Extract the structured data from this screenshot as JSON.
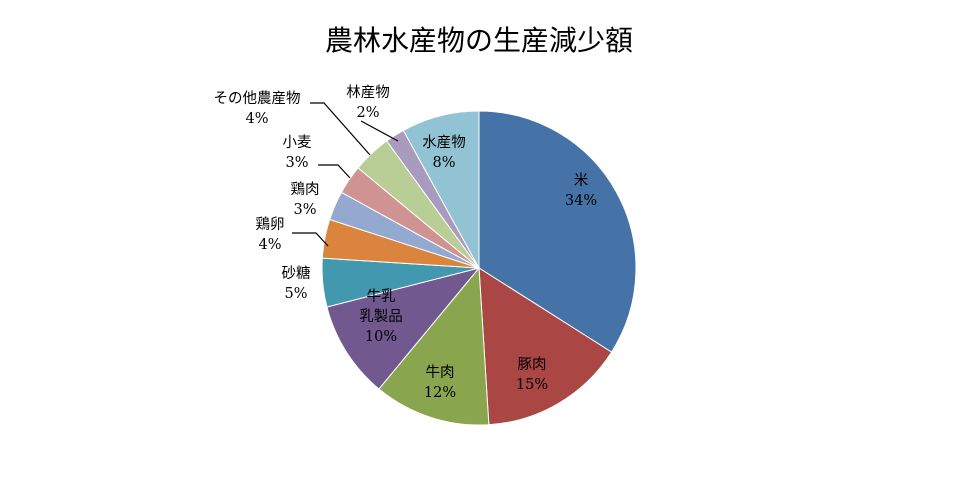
{
  "chart_data": {
    "type": "pie",
    "title": "農林水産物の生産減少額",
    "start_angle_deg": 0,
    "direction": "clockwise",
    "legend": "none",
    "slices": [
      {
        "name": "米",
        "value": 34,
        "label": "34%",
        "color": "#4572A7"
      },
      {
        "name": "豚肉",
        "value": 15,
        "label": "15%",
        "color": "#AA4643"
      },
      {
        "name": "牛肉",
        "value": 12,
        "label": "12%",
        "color": "#89A54E"
      },
      {
        "name": "牛乳\n乳製品",
        "value": 10,
        "label": "10%",
        "color": "#71588F"
      },
      {
        "name": "砂糖",
        "value": 5,
        "label": "5%",
        "color": "#4198AF"
      },
      {
        "name": "鶏卵",
        "value": 4,
        "label": "4%",
        "color": "#DB843D"
      },
      {
        "name": "鶏肉",
        "value": 3,
        "label": "3%",
        "color": "#93A9CF"
      },
      {
        "name": "小麦",
        "value": 3,
        "label": "3%",
        "color": "#D19392"
      },
      {
        "name": "その他農産物",
        "value": 4,
        "label": "4%",
        "color": "#B9CD96"
      },
      {
        "name": "林産物",
        "value": 2,
        "label": "2%",
        "color": "#A99BBD"
      },
      {
        "name": "水産物",
        "value": 8,
        "label": "8%",
        "color": "#92C3D4"
      }
    ]
  }
}
